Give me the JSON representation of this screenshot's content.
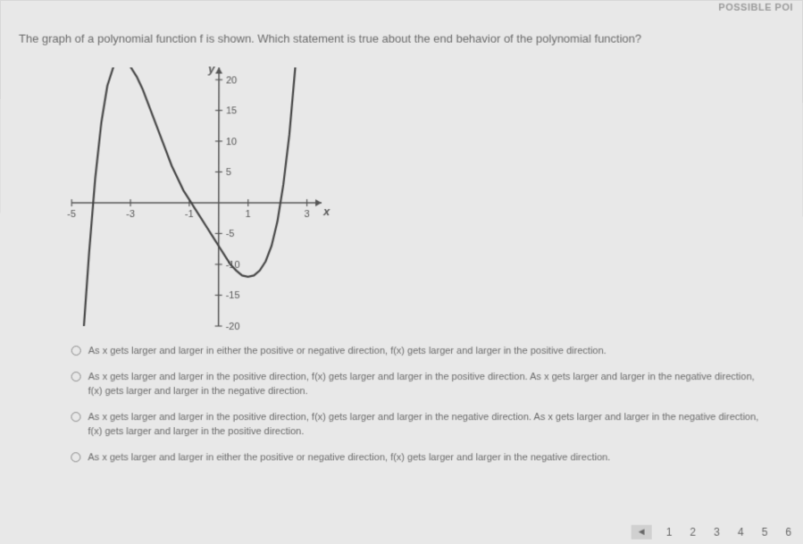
{
  "header": {
    "label": "POSSIBLE POI"
  },
  "question": "The graph of a polynomial function f is shown. Which statement is true about the end behavior of the polynomial function?",
  "chart": {
    "type": "line",
    "x_label": "x",
    "y_label": "y",
    "xlim": [
      -5,
      3.5
    ],
    "ylim": [
      -20,
      22
    ],
    "xticks": [
      -5,
      -3,
      -1,
      1,
      3
    ],
    "yticks": [
      -20,
      -15,
      -10,
      -5,
      5,
      10,
      15,
      20
    ],
    "axis_color": "#555555",
    "curve_color": "#444444",
    "curve_width": 2.2,
    "background_color": "#e8e8e8",
    "curve_points": [
      [
        -4.6,
        -22
      ],
      [
        -4.4,
        -8
      ],
      [
        -4.2,
        4
      ],
      [
        -4.0,
        13
      ],
      [
        -3.8,
        19
      ],
      [
        -3.6,
        22
      ],
      [
        -3.4,
        23
      ],
      [
        -3.2,
        23
      ],
      [
        -3.0,
        22
      ],
      [
        -2.8,
        20.5
      ],
      [
        -2.6,
        18.5
      ],
      [
        -2.4,
        16
      ],
      [
        -2.2,
        13.5
      ],
      [
        -2.0,
        11
      ],
      [
        -1.8,
        8.5
      ],
      [
        -1.6,
        6
      ],
      [
        -1.4,
        4
      ],
      [
        -1.2,
        2
      ],
      [
        -1.0,
        0.5
      ],
      [
        -0.8,
        -1
      ],
      [
        -0.6,
        -2.5
      ],
      [
        -0.4,
        -4
      ],
      [
        -0.2,
        -5.5
      ],
      [
        0.0,
        -7
      ],
      [
        0.2,
        -8.5
      ],
      [
        0.4,
        -10
      ],
      [
        0.6,
        -11
      ],
      [
        0.8,
        -11.8
      ],
      [
        1.0,
        -12
      ],
      [
        1.2,
        -11.8
      ],
      [
        1.4,
        -11
      ],
      [
        1.6,
        -9.5
      ],
      [
        1.8,
        -7
      ],
      [
        2.0,
        -3
      ],
      [
        2.2,
        3
      ],
      [
        2.4,
        11
      ],
      [
        2.6,
        22
      ],
      [
        2.7,
        30
      ]
    ]
  },
  "options": [
    "As x gets larger and larger in either the positive or negative direction, f(x) gets larger and larger in the positive direction.",
    "As x gets larger and larger in the positive direction, f(x) gets larger and larger in the positive direction. As x gets larger and larger in the negative direction, f(x) gets larger and larger in the negative direction.",
    "As x gets larger and larger in the positive direction, f(x) gets larger and larger in the negative direction. As x gets larger and larger in the negative direction, f(x) gets larger and larger in the positive direction.",
    "As x gets larger and larger in either the positive or negative direction, f(x) gets larger and larger in the negative direction."
  ],
  "pagination": {
    "prev_icon": "◄",
    "pages": [
      "1",
      "2",
      "3",
      "4",
      "5",
      "6"
    ]
  }
}
